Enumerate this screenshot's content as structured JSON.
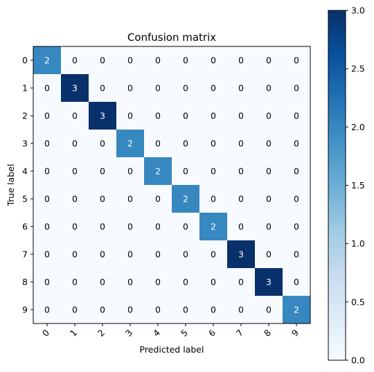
{
  "chart_data": {
    "type": "heatmap",
    "title": "Confusion matrix",
    "xlabel": "Predicted label",
    "ylabel": "True label",
    "x_categories": [
      "0",
      "1",
      "2",
      "3",
      "4",
      "5",
      "6",
      "7",
      "8",
      "9"
    ],
    "y_categories": [
      "0",
      "1",
      "2",
      "3",
      "4",
      "5",
      "6",
      "7",
      "8",
      "9"
    ],
    "matrix": [
      [
        2,
        0,
        0,
        0,
        0,
        0,
        0,
        0,
        0,
        0
      ],
      [
        0,
        3,
        0,
        0,
        0,
        0,
        0,
        0,
        0,
        0
      ],
      [
        0,
        0,
        3,
        0,
        0,
        0,
        0,
        0,
        0,
        0
      ],
      [
        0,
        0,
        0,
        2,
        0,
        0,
        0,
        0,
        0,
        0
      ],
      [
        0,
        0,
        0,
        0,
        2,
        0,
        0,
        0,
        0,
        0
      ],
      [
        0,
        0,
        0,
        0,
        0,
        2,
        0,
        0,
        0,
        0
      ],
      [
        0,
        0,
        0,
        0,
        0,
        0,
        2,
        0,
        0,
        0
      ],
      [
        0,
        0,
        0,
        0,
        0,
        0,
        0,
        3,
        0,
        0
      ],
      [
        0,
        0,
        0,
        0,
        0,
        0,
        0,
        0,
        3,
        0
      ],
      [
        0,
        0,
        0,
        0,
        0,
        0,
        0,
        0,
        0,
        2
      ]
    ],
    "colorbar": {
      "min": 0,
      "max": 3,
      "ticks": [
        "0.0",
        "0.5",
        "1.0",
        "1.5",
        "2.0",
        "2.5",
        "3.0"
      ],
      "colormap": "Blues"
    },
    "grid": false
  }
}
